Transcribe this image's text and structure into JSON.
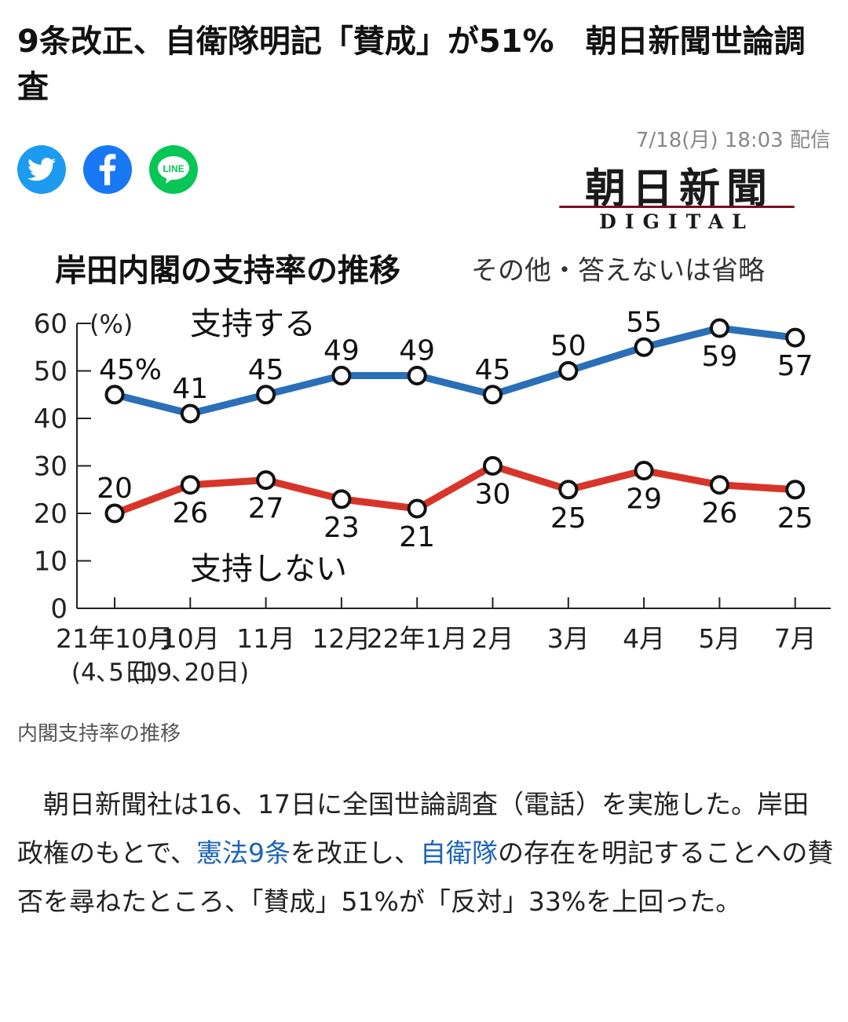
{
  "article": {
    "title": "9条改正、自衛隊明記「賛成」が51%　朝日新聞世論調査",
    "date": "7/18(月) 18:03 配信",
    "share": [
      {
        "name": "twitter",
        "icon": "twitter-bird-icon",
        "color": "#1d9bf0"
      },
      {
        "name": "facebook",
        "icon": "facebook-f-icon",
        "color": "#1877f2"
      },
      {
        "name": "line",
        "icon": "line-icon",
        "color": "#06c755",
        "label": "LINE"
      }
    ],
    "logo": {
      "ja": "朝日新聞",
      "en": "DIGITAL"
    },
    "caption": "内閣支持率の推移",
    "body": {
      "p1": "　朝日新聞社は16、17日に全国世論調査（電話）を実施した。岸田政権のもとで、",
      "link1": "憲法9条",
      "p2": "を改正し、",
      "link2": "自衛隊",
      "p3": "の存在を明記することへの賛否を尋ねたところ、「賛成」51%が「反対」33%を上回った。"
    }
  },
  "chart_data": {
    "type": "line",
    "title": "岸田内閣の支持率の推移",
    "subtitle": "その他・答えないは省略",
    "ylabel": "(%)",
    "ylim": [
      0,
      60
    ],
    "yticks": [
      "0",
      "10",
      "20",
      "30",
      "40",
      "50",
      "60"
    ],
    "categories": [
      "21年10月",
      "10月",
      "11月",
      "12月",
      "22年1月",
      "2月",
      "3月",
      "4月",
      "5月",
      "7月"
    ],
    "subcategories": [
      "(4､5日)",
      "(19､20日)",
      "",
      "",
      "",
      "",
      "",
      "",
      "",
      ""
    ],
    "series": [
      {
        "name": "支持する",
        "color": "#2a6fb8",
        "values": [
          45,
          41,
          45,
          49,
          49,
          45,
          50,
          55,
          59,
          57
        ],
        "labels": [
          "45%",
          "41",
          "45",
          "49",
          "49",
          "45",
          "50",
          "55",
          "59",
          "57"
        ],
        "label_pos": [
          "above",
          "above",
          "above",
          "above",
          "above",
          "above",
          "above",
          "above",
          "below",
          "below"
        ]
      },
      {
        "name": "支持しない",
        "color": "#d8352a",
        "values": [
          20,
          26,
          27,
          23,
          21,
          30,
          25,
          29,
          26,
          25
        ],
        "labels": [
          "20",
          "26",
          "27",
          "23",
          "21",
          "30",
          "25",
          "29",
          "26",
          "25"
        ],
        "label_pos": [
          "above",
          "below",
          "below",
          "below",
          "below",
          "below",
          "below",
          "below",
          "below",
          "below"
        ]
      }
    ],
    "grid": false,
    "legend": "inline-labels"
  }
}
